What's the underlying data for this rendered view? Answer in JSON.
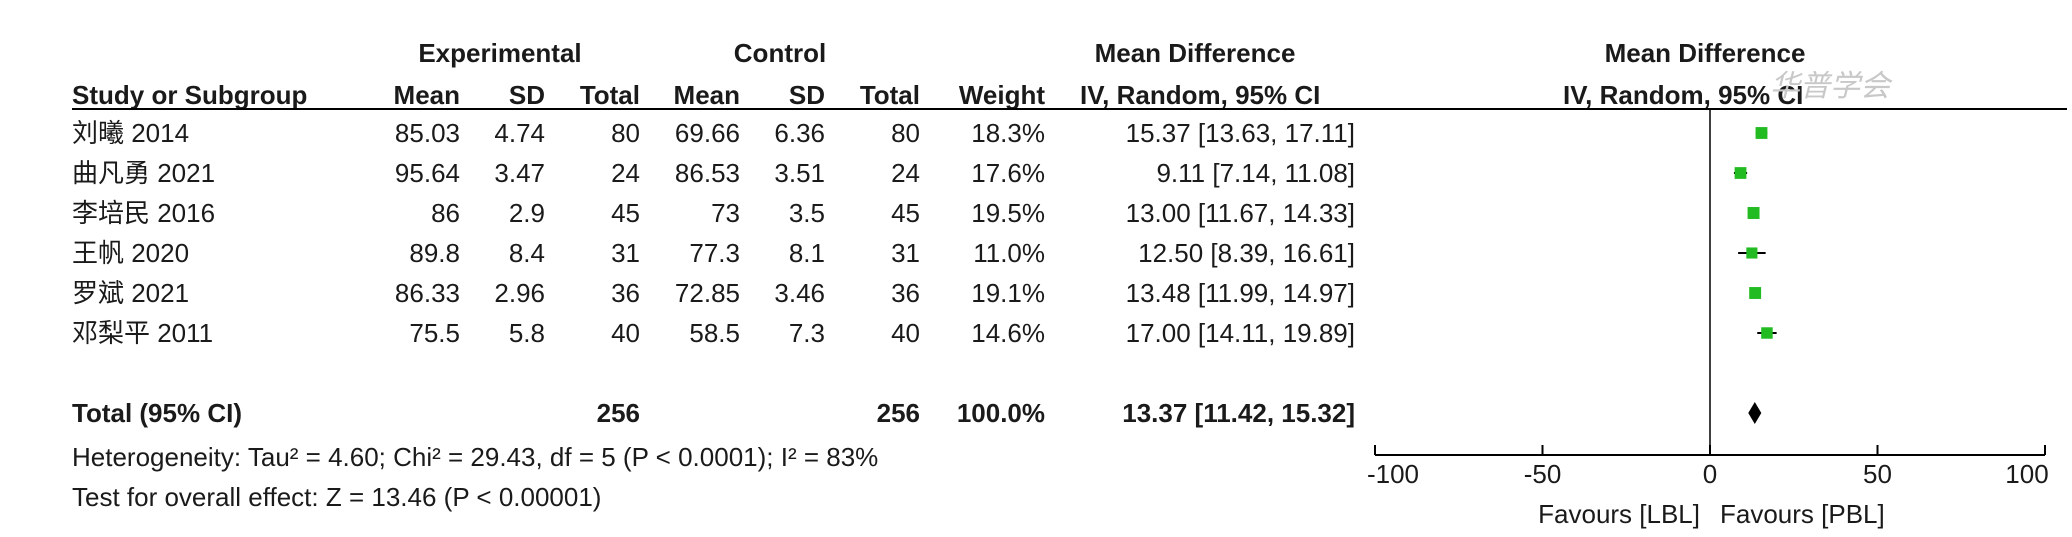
{
  "header": {
    "group1": "Experimental",
    "group2": "Control",
    "md_group": "Mean Difference",
    "plot_group": "Mean Difference",
    "col_study": "Study or Subgroup",
    "col_mean1": "Mean",
    "col_sd1": "SD",
    "col_total1": "Total",
    "col_mean2": "Mean",
    "col_sd2": "SD",
    "col_total2": "Total",
    "col_weight": "Weight",
    "col_md": "IV, Random, 95% CI",
    "plot_sub": "IV, Random, 95% CI"
  },
  "studies": [
    {
      "name": "刘曦 2014",
      "mean1": "85.03",
      "sd1": "4.74",
      "n1": "80",
      "mean2": "69.66",
      "sd2": "6.36",
      "n2": "80",
      "weight": "18.3%",
      "ci_text": "15.37 [13.63, 17.11]"
    },
    {
      "name": "曲凡勇 2021",
      "mean1": "95.64",
      "sd1": "3.47",
      "n1": "24",
      "mean2": "86.53",
      "sd2": "3.51",
      "n2": "24",
      "weight": "17.6%",
      "ci_text": "9.11 [7.14, 11.08]"
    },
    {
      "name": "李培民 2016",
      "mean1": "86",
      "sd1": "2.9",
      "n1": "45",
      "mean2": "73",
      "sd2": "3.5",
      "n2": "45",
      "weight": "19.5%",
      "ci_text": "13.00 [11.67, 14.33]"
    },
    {
      "name": "王帆 2020",
      "mean1": "89.8",
      "sd1": "8.4",
      "n1": "31",
      "mean2": "77.3",
      "sd2": "8.1",
      "n2": "31",
      "weight": "11.0%",
      "ci_text": "12.50 [8.39, 16.61]"
    },
    {
      "name": "罗斌 2021",
      "mean1": "86.33",
      "sd1": "2.96",
      "n1": "36",
      "mean2": "72.85",
      "sd2": "3.46",
      "n2": "36",
      "weight": "19.1%",
      "ci_text": "13.48 [11.99, 14.97]"
    },
    {
      "name": "邓梨平 2011",
      "mean1": "75.5",
      "sd1": "5.8",
      "n1": "40",
      "mean2": "58.5",
      "sd2": "7.3",
      "n2": "40",
      "weight": "14.6%",
      "ci_text": "17.00 [14.11, 19.89]"
    }
  ],
  "total": {
    "label": "Total (95% CI)",
    "n1": "256",
    "n2": "256",
    "weight": "100.0%",
    "ci_text": "13.37 [11.42, 15.32]"
  },
  "heterogeneity": "Heterogeneity: Tau² = 4.60; Chi² = 29.43, df = 5 (P < 0.0001); I² = 83%",
  "overall_effect": "Test for overall effect: Z = 13.46 (P < 0.00001)",
  "watermark": "华普学会",
  "marker_color": "#22bb22",
  "chart_data": {
    "type": "forest",
    "studies": [
      {
        "name": "刘曦 2014",
        "md": 15.37,
        "lo": 13.63,
        "hi": 17.11,
        "weight": 18.3
      },
      {
        "name": "曲凡勇 2021",
        "md": 9.11,
        "lo": 7.14,
        "hi": 11.08,
        "weight": 17.6
      },
      {
        "name": "李培民 2016",
        "md": 13.0,
        "lo": 11.67,
        "hi": 14.33,
        "weight": 19.5
      },
      {
        "name": "王帆 2020",
        "md": 12.5,
        "lo": 8.39,
        "hi": 16.61,
        "weight": 11.0
      },
      {
        "name": "罗斌 2021",
        "md": 13.48,
        "lo": 11.99,
        "hi": 14.97,
        "weight": 19.1
      },
      {
        "name": "邓梨平 2011",
        "md": 17.0,
        "lo": 14.11,
        "hi": 19.89,
        "weight": 14.6
      }
    ],
    "overall": {
      "md": 13.37,
      "lo": 11.42,
      "hi": 15.32
    },
    "xlim": [
      -100,
      100
    ],
    "ticks": [
      -100,
      -50,
      0,
      50,
      100
    ],
    "favours_left": "Favours [LBL]",
    "favours_right": "Favours [PBL]"
  }
}
